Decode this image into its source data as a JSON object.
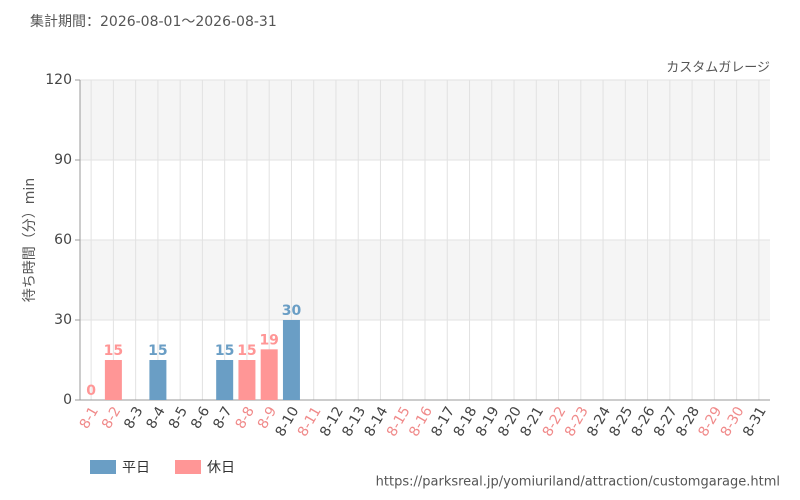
{
  "chart_data": {
    "type": "bar",
    "subtitle": "集計期間：2026-08-01～2026-08-31",
    "annotation": "カスタムガレージ",
    "y_label": "待ち時間（分）min",
    "source": "https://parksreal.jp/yomiuriland/attraction/customgarage.html",
    "categories": [
      "8-1",
      "8-2",
      "8-3",
      "8-4",
      "8-5",
      "8-6",
      "8-7",
      "8-8",
      "8-9",
      "8-10",
      "8-11",
      "8-12",
      "8-13",
      "8-14",
      "8-15",
      "8-16",
      "8-17",
      "8-18",
      "8-19",
      "8-20",
      "8-21",
      "8-22",
      "8-23",
      "8-24",
      "8-25",
      "8-26",
      "8-27",
      "8-28",
      "8-29",
      "8-30",
      "8-31"
    ],
    "category_label_colors": [
      "#f08a8a",
      "#f08a8a",
      "#444",
      "#444",
      "#444",
      "#444",
      "#444",
      "#f08a8a",
      "#f08a8a",
      "#444",
      "#f08a8a",
      "#444",
      "#444",
      "#444",
      "#f08a8a",
      "#f08a8a",
      "#444",
      "#444",
      "#444",
      "#444",
      "#444",
      "#f08a8a",
      "#f08a8a",
      "#444",
      "#444",
      "#444",
      "#444",
      "#444",
      "#f08a8a",
      "#f08a8a",
      "#444"
    ],
    "series": [
      {
        "name": "平日",
        "color": "#6a9ec5",
        "values": [
          null,
          null,
          null,
          15,
          null,
          null,
          15,
          null,
          null,
          30,
          null,
          null,
          null,
          null,
          null,
          null,
          null,
          null,
          null,
          null,
          null,
          null,
          null,
          null,
          null,
          null,
          null,
          null,
          null,
          null,
          null
        ]
      },
      {
        "name": "休日",
        "color": "#ff9696",
        "values": [
          0,
          15,
          null,
          null,
          null,
          null,
          null,
          15,
          19,
          null,
          null,
          null,
          null,
          null,
          null,
          null,
          null,
          null,
          null,
          null,
          null,
          null,
          null,
          null,
          null,
          null,
          null,
          null,
          null,
          null,
          null
        ]
      }
    ],
    "ylim": [
      0,
      120
    ],
    "yticks": [
      0,
      30,
      60,
      90,
      120
    ],
    "grid": true
  }
}
